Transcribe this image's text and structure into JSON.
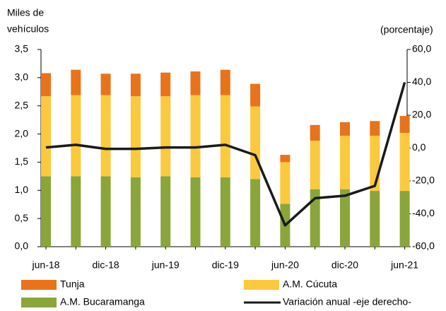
{
  "chart_data": {
    "type": "bar_line",
    "ylabel": [
      "Miles de",
      "vehículos"
    ],
    "y2label": "(porcentaje)",
    "categories": [
      "jun-18",
      null,
      "dic-18",
      null,
      "jun-19",
      null,
      "dic-19",
      null,
      "jun-20",
      null,
      "dic-20",
      null,
      "jun-21"
    ],
    "ylim": [
      0,
      3.5
    ],
    "yticks": [
      {
        "value": 0,
        "label": "0,0"
      },
      {
        "value": 0.5,
        "label": "0,5"
      },
      {
        "value": 1,
        "label": "1,0"
      },
      {
        "value": 1.5,
        "label": "1,5"
      },
      {
        "value": 2,
        "label": "2,0"
      },
      {
        "value": 2.5,
        "label": "2,5"
      },
      {
        "value": 3,
        "label": "3,0"
      },
      {
        "value": 3.5,
        "label": "3,5"
      }
    ],
    "y2lim": [
      -60,
      60
    ],
    "y2ticks": [
      {
        "value": -60,
        "label": "-60,0"
      },
      {
        "value": -40,
        "label": "-40,0"
      },
      {
        "value": -20,
        "label": "-20,0"
      },
      {
        "value": 0,
        "label": "0,0"
      },
      {
        "value": 20,
        "label": "20,0"
      },
      {
        "value": 40,
        "label": "40,0"
      },
      {
        "value": 60,
        "label": "60,0"
      }
    ],
    "series": [
      {
        "name": "A.M. Bucaramanga",
        "color": "#8aa53a",
        "values": [
          1.25,
          1.25,
          1.25,
          1.23,
          1.25,
          1.23,
          1.23,
          1.2,
          0.76,
          1.02,
          1.02,
          0.99,
          0.99
        ]
      },
      {
        "name": "A.M. Cúcuta",
        "color": "#fbc93e",
        "values": [
          1.42,
          1.44,
          1.44,
          1.44,
          1.42,
          1.46,
          1.46,
          1.29,
          0.74,
          0.86,
          0.95,
          0.98,
          1.03
        ]
      },
      {
        "name": "Tunja",
        "color": "#e8731a",
        "values": [
          0.41,
          0.45,
          0.38,
          0.4,
          0.42,
          0.42,
          0.45,
          0.4,
          0.13,
          0.28,
          0.24,
          0.26,
          0.3
        ]
      },
      {
        "name": "Variación anual -eje derecho-",
        "color": "#1a1a1a",
        "axis": "y2",
        "values": [
          0.4,
          2,
          -0.5,
          -0.5,
          0.4,
          0.4,
          2,
          -4.3,
          -47,
          -30.5,
          -29,
          -23,
          40
        ]
      }
    ]
  }
}
